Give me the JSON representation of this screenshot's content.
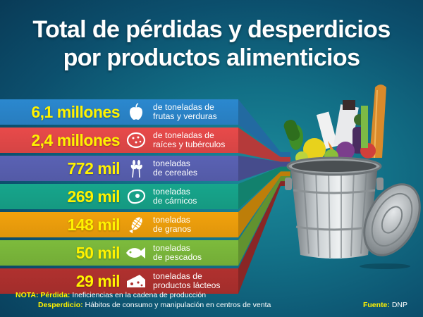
{
  "title": {
    "line1": "Total de pérdidas y desperdicios",
    "line2": "por productos alimenticios"
  },
  "chart_data": {
    "type": "bar",
    "title": "Total de pérdidas y desperdicios por productos alimenticios",
    "categories": [
      "frutas y verduras",
      "raíces y tubérculos",
      "cereales",
      "cárnicos",
      "granos",
      "pescados",
      "productos lácteos"
    ],
    "values": [
      6100000,
      2400000,
      772000,
      269000,
      148000,
      50000,
      29000
    ],
    "unit": "toneladas"
  },
  "rows": [
    {
      "amount": "6,1 millones",
      "desc1": "de toneladas de",
      "desc2": "frutas y verduras",
      "icon": "apple-icon",
      "color": "#2b88cf"
    },
    {
      "amount": "2,4 millones",
      "desc1": "de toneladas de",
      "desc2": "raíces y tubérculos",
      "icon": "potato-icon",
      "color": "#e84a4a"
    },
    {
      "amount": "772 mil",
      "desc1": "toneladas",
      "desc2": "de cereales",
      "icon": "wheat-icon",
      "color": "#5a62b4"
    },
    {
      "amount": "269 mil",
      "desc1": "toneladas",
      "desc2": "de cárnicos",
      "icon": "steak-icon",
      "color": "#17a68c"
    },
    {
      "amount": "148 mil",
      "desc1": "toneladas",
      "desc2": "de granos",
      "icon": "corn-icon",
      "color": "#f2a20c"
    },
    {
      "amount": "50 mil",
      "desc1": "toneladas",
      "desc2": "de pescados",
      "icon": "fish-icon",
      "color": "#7dbb3c"
    },
    {
      "amount": "29 mil",
      "desc1": "toneladas de",
      "desc2": "productos lácteos",
      "icon": "cheese-icon",
      "color": "#b0312f"
    }
  ],
  "note": {
    "label": "NOTA:",
    "loss_label": "Pérdida:",
    "loss_text": "Ineficiencias en la cadena de producción",
    "waste_label": "Desperdicio:",
    "waste_text": "Hábitos de consumo y manipulación en centros de venta"
  },
  "source": {
    "label": "Fuente:",
    "text": "DNP"
  }
}
